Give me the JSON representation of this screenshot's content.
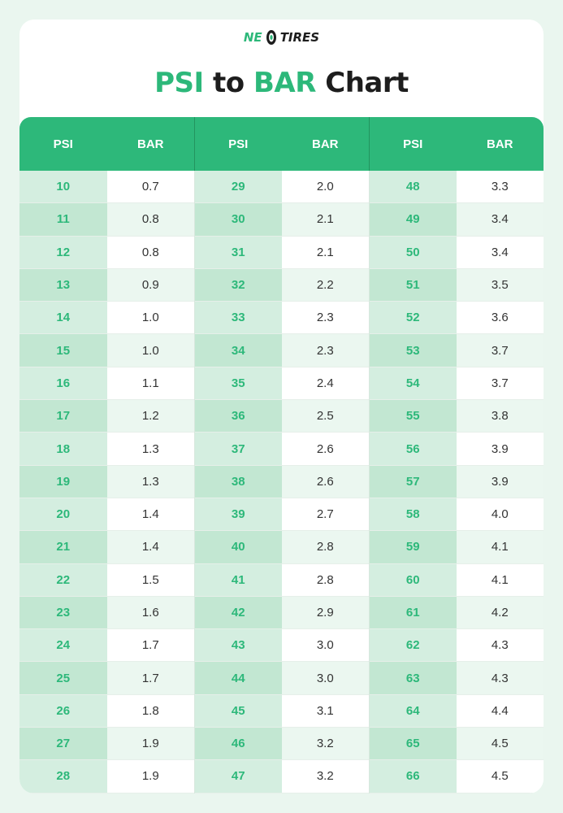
{
  "brand": {
    "logo_left": "NE",
    "logo_right": "TIRES",
    "accent": "#2db87a"
  },
  "title": {
    "part1": "PSI",
    "part2": "to",
    "part3": "BAR",
    "part4": "Chart"
  },
  "headers": [
    "PSI",
    "BAR",
    "PSI",
    "BAR",
    "PSI",
    "BAR"
  ],
  "columns": [
    {
      "psi": [
        "10",
        "11",
        "12",
        "13",
        "14",
        "15",
        "16",
        "17",
        "18",
        "19",
        "20",
        "21",
        "22",
        "23",
        "24",
        "25",
        "26",
        "27",
        "28"
      ],
      "bar": [
        "0.7",
        "0.8",
        "0.8",
        "0.9",
        "1.0",
        "1.0",
        "1.1",
        "1.2",
        "1.3",
        "1.3",
        "1.4",
        "1.4",
        "1.5",
        "1.6",
        "1.7",
        "1.7",
        "1.8",
        "1.9",
        "1.9"
      ]
    },
    {
      "psi": [
        "29",
        "30",
        "31",
        "32",
        "33",
        "34",
        "35",
        "36",
        "37",
        "38",
        "39",
        "40",
        "41",
        "42",
        "43",
        "44",
        "45",
        "46",
        "47"
      ],
      "bar": [
        "2.0",
        "2.1",
        "2.1",
        "2.2",
        "2.3",
        "2.3",
        "2.4",
        "2.5",
        "2.6",
        "2.6",
        "2.7",
        "2.8",
        "2.8",
        "2.9",
        "3.0",
        "3.0",
        "3.1",
        "3.2",
        "3.2"
      ]
    },
    {
      "psi": [
        "48",
        "49",
        "50",
        "51",
        "52",
        "53",
        "54",
        "55",
        "56",
        "57",
        "58",
        "59",
        "60",
        "61",
        "62",
        "63",
        "64",
        "65",
        "66"
      ],
      "bar": [
        "3.3",
        "3.4",
        "3.4",
        "3.5",
        "3.6",
        "3.7",
        "3.7",
        "3.8",
        "3.9",
        "3.9",
        "4.0",
        "4.1",
        "4.1",
        "4.2",
        "4.3",
        "4.3",
        "4.4",
        "4.5",
        "4.5"
      ]
    }
  ]
}
